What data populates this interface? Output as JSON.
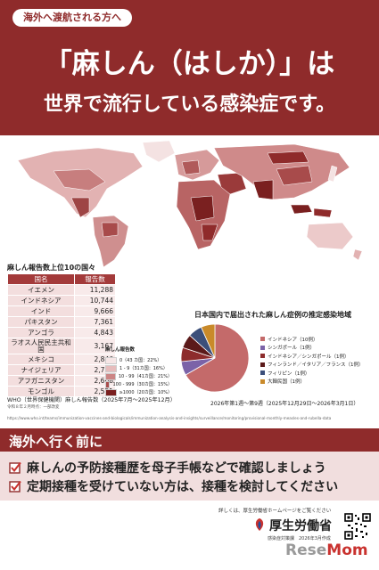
{
  "header": {
    "tag": "海外へ渡航される方へ",
    "title_line1": "「麻しん（はしか）」は",
    "title_line2": "世界で流行している感染症です。"
  },
  "ranking": {
    "title": "麻しん報告数上位10の国々",
    "col_country": "国名",
    "col_count": "報告数",
    "rows": [
      {
        "country": "イエメン",
        "count": "11,288"
      },
      {
        "country": "インドネシア",
        "count": "10,744"
      },
      {
        "country": "インド",
        "count": "9,666"
      },
      {
        "country": "パキスタン",
        "count": "7,361"
      },
      {
        "country": "アンゴラ",
        "count": "4,843"
      },
      {
        "country": "ラオス人民民主共和国",
        "count": "3,167"
      },
      {
        "country": "メキシコ",
        "count": "2,846"
      },
      {
        "country": "ナイジェリア",
        "count": "2,755"
      },
      {
        "country": "アフガニスタン",
        "count": "2,668"
      },
      {
        "country": "モンゴル",
        "count": "2,551"
      }
    ]
  },
  "map_legend": {
    "title": "麻しん報告数",
    "items": [
      {
        "label": "0（43 カ国：22%）",
        "color": "#f6e6e6"
      },
      {
        "label": "1 - 9（31カ国：16%）",
        "color": "#e6bcbc"
      },
      {
        "label": "10 - 99（41カ国：21%）",
        "color": "#cc8585"
      },
      {
        "label": "100 - 999（30カ国：15%）",
        "color": "#a84b4b"
      },
      {
        "label": "≥1000（20カ国：10%）",
        "color": "#7a2020"
      }
    ]
  },
  "pie": {
    "title": "日本国内で届出された麻しん症例の推定感染地域",
    "items": [
      {
        "label": "インドネシア（10例）",
        "value": 10,
        "color": "#c46a6a"
      },
      {
        "label": "シンガポール（1例）",
        "value": 1,
        "color": "#7b63a8"
      },
      {
        "label": "インドネシア／シンガポール（1例）",
        "value": 1,
        "color": "#8d2c2c"
      },
      {
        "label": "フィンランド／イタリア／フランス（1例）",
        "value": 1,
        "color": "#5b1a1a"
      },
      {
        "label": "フィリピン（1例）",
        "value": 1,
        "color": "#3c4f7a"
      },
      {
        "label": "大韓民国（1例）",
        "value": 1,
        "color": "#c98a2a"
      }
    ],
    "period": "2026年第1週～第9週（2025年12月29日～2026年3月1日）"
  },
  "footnotes": {
    "who_source": "WHO（世界保健機関）麻しん報告数（2025年7月～2025年12月）",
    "ref_note": "令和８年２月時点：一部改変",
    "url": "https://www.who.int/teams/immunization-vaccines-and-biologicals/immunization-analysis-and-insights/surveillance/monitoring/provisional-monthly-measles-and-rubella-data"
  },
  "message": {
    "heading": "海外へ行く前に",
    "bullets": [
      "麻しんの予防接種歴を母子手帳などで確認しましょう",
      "定期接種を受けていない方は、接種を検討してください"
    ]
  },
  "footer": {
    "note": "詳しくは、厚生労働省ホームページをご覧ください",
    "ministry": "厚生労働省",
    "made": "感染症対策課　2026年3月作成",
    "watermark_a": "Rese",
    "watermark_b": "Mom"
  },
  "colors": {
    "brand": "#8f2b2b",
    "light": "#f1dede"
  },
  "icons": [
    "checkbox-check-icon",
    "mhlw-logo-icon",
    "qr-code-icon"
  ]
}
